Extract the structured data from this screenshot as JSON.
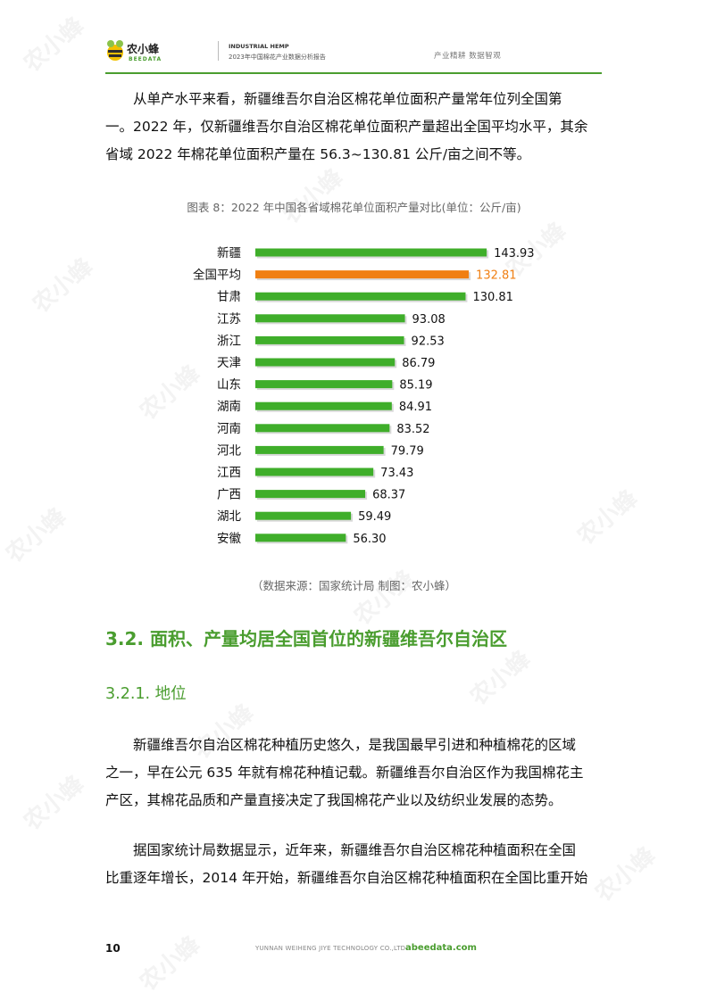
{
  "header": {
    "logo_cn": "农小蜂",
    "logo_en": "BEEDATA",
    "title_en": "INDUSTRIAL HEMP",
    "title_cn": "2023年中国棉花产业数据分析报告",
    "slogan": "产业精耕  数据智观"
  },
  "intro": {
    "lines": [
      "从单产水平来看，新疆维吾尔自治区棉花单位面积产量常年位列全国第",
      "一。2022 年，仅新疆维吾尔自治区棉花单位面积产量超出全国平均水平，其余",
      "省域 2022 年棉花单位面积产量在 56.3~130.81 公斤/亩之间不等。"
    ]
  },
  "chart_title": "图表 8：2022 年中国各省域棉花单位面积产量对比(单位：公斤/亩)",
  "chart_data": {
    "type": "bar",
    "orientation": "horizontal",
    "categories": [
      "新疆",
      "全国平均",
      "甘肃",
      "江苏",
      "浙江",
      "天津",
      "山东",
      "湖南",
      "河南",
      "河北",
      "江西",
      "广西",
      "湖北",
      "安徽"
    ],
    "values": [
      143.93,
      132.81,
      130.81,
      93.08,
      92.53,
      86.79,
      85.19,
      84.91,
      83.52,
      79.79,
      73.43,
      68.37,
      59.49,
      56.3
    ],
    "value_labels": [
      "143.93",
      "132.81",
      "130.81",
      "93.08",
      "92.53",
      "86.79",
      "85.19",
      "84.91",
      "83.52",
      "79.79",
      "73.43",
      "68.37",
      "59.49",
      "56.30"
    ],
    "highlight_index": 1,
    "colors": {
      "default": "#3fae2a",
      "highlight": "#f07f12"
    },
    "xlim": [
      0,
      150
    ],
    "grid": false,
    "legend": "none"
  },
  "chart_source": "（数据来源：国家统计局    制图：农小蜂）",
  "section_h2": "3.2. 面积、产量均居全国首位的新疆维吾尔自治区",
  "section_h3": "3.2.1. 地位",
  "para1": {
    "lines": [
      "新疆维吾尔自治区棉花种植历史悠久，是我国最早引进和种植棉花的区域",
      "之一，早在公元 635 年就有棉花种植记载。新疆维吾尔自治区作为我国棉花主",
      "产区，其棉花品质和产量直接决定了我国棉花产业以及纺织业发展的态势。"
    ]
  },
  "para2": {
    "lines": [
      "据国家统计局数据显示，近年来，新疆维吾尔自治区棉花种植面积在全国",
      "比重逐年增长，2014 年开始，新疆维吾尔自治区棉花种植面积在全国比重开始"
    ]
  },
  "footer": {
    "page_number": "10",
    "company": "YUNNAN WEIHENG JIYE TECHNOLOGY CO.,LTD.",
    "site": "abeedata.com"
  }
}
